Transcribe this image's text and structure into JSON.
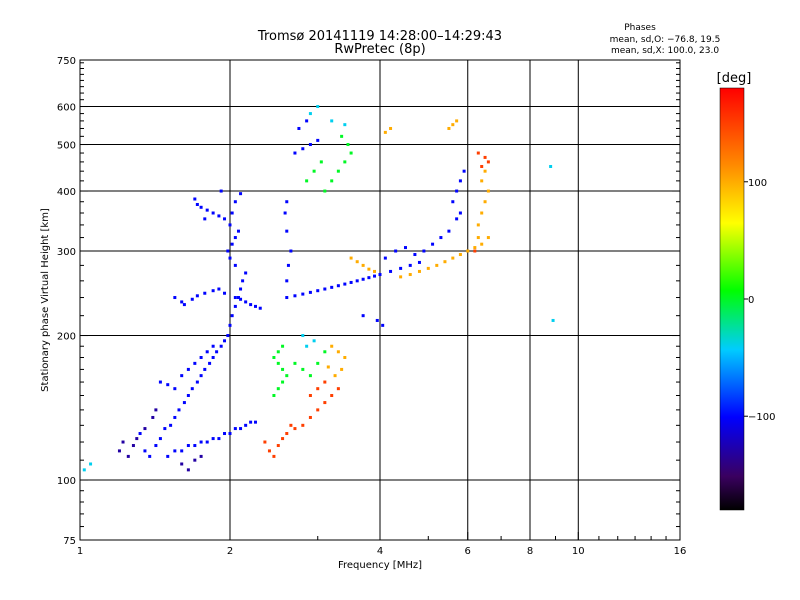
{
  "chart_data": {
    "type": "scatter",
    "title": "Tromsø 20141119 14:28:00–14:29:43",
    "subtitle": "RwPretec (8p)",
    "xlabel": "Frequency [MHz]",
    "ylabel": "Stationary phase Virtual Height [km]",
    "xscale": "log",
    "yscale": "log",
    "xlim": [
      1,
      16
    ],
    "ylim": [
      75,
      750
    ],
    "x_ticks": [
      1,
      2,
      4,
      6,
      8,
      10,
      16
    ],
    "x_tick_labels": [
      "1",
      "2",
      "4",
      "6",
      "8",
      "10",
      "16"
    ],
    "x_gridlines": [
      2,
      4,
      6,
      8,
      10
    ],
    "y_ticks": [
      75,
      100,
      200,
      300,
      400,
      500,
      600,
      750
    ],
    "y_tick_labels": [
      "75",
      "100",
      "200",
      "300",
      "400",
      "500",
      "600",
      "750"
    ],
    "y_gridlines": [
      100,
      200,
      300,
      400,
      500,
      600
    ],
    "grid": true,
    "info_heading": "Phases",
    "info_lines": [
      "mean, sd,O: −76.8, 19.5",
      "mean, sd,X: 100.0, 23.0"
    ],
    "colorbar": {
      "label": "[deg]",
      "range": [
        -180,
        180
      ],
      "ticks": [
        -100,
        0,
        100
      ],
      "tick_labels": [
        "−100",
        "0",
        "100"
      ]
    },
    "series": [
      {
        "color_value": -100,
        "points": [
          [
            1.32,
            125
          ],
          [
            1.35,
            115
          ],
          [
            1.38,
            112
          ],
          [
            1.42,
            118
          ],
          [
            1.45,
            122
          ],
          [
            1.48,
            128
          ],
          [
            1.52,
            130
          ],
          [
            1.55,
            135
          ],
          [
            1.58,
            140
          ],
          [
            1.62,
            145
          ],
          [
            1.65,
            150
          ],
          [
            1.68,
            155
          ],
          [
            1.72,
            160
          ],
          [
            1.75,
            165
          ],
          [
            1.78,
            170
          ],
          [
            1.82,
            175
          ],
          [
            1.85,
            180
          ],
          [
            1.88,
            185
          ],
          [
            1.92,
            190
          ],
          [
            1.95,
            195
          ],
          [
            1.5,
            112
          ],
          [
            1.55,
            115
          ],
          [
            1.6,
            115
          ],
          [
            1.65,
            118
          ],
          [
            1.7,
            118
          ],
          [
            1.75,
            120
          ],
          [
            1.8,
            120
          ],
          [
            1.85,
            122
          ],
          [
            1.9,
            122
          ],
          [
            1.95,
            125
          ],
          [
            2.0,
            125
          ],
          [
            2.05,
            128
          ],
          [
            2.1,
            128
          ],
          [
            2.15,
            130
          ],
          [
            2.2,
            132
          ],
          [
            2.25,
            132
          ],
          [
            1.98,
            200
          ],
          [
            2.0,
            210
          ],
          [
            2.02,
            220
          ],
          [
            2.05,
            230
          ],
          [
            2.08,
            240
          ],
          [
            2.1,
            250
          ],
          [
            2.12,
            260
          ],
          [
            2.15,
            270
          ],
          [
            2.05,
            280
          ],
          [
            2.0,
            290
          ],
          [
            1.98,
            300
          ],
          [
            2.02,
            310
          ],
          [
            2.05,
            320
          ],
          [
            2.08,
            330
          ],
          [
            2.0,
            340
          ],
          [
            1.95,
            350
          ],
          [
            2.02,
            360
          ],
          [
            2.05,
            380
          ],
          [
            2.1,
            395
          ],
          [
            1.92,
            400
          ],
          [
            1.7,
            385
          ],
          [
            1.75,
            370
          ],
          [
            1.8,
            365
          ],
          [
            1.85,
            360
          ],
          [
            1.9,
            355
          ],
          [
            1.72,
            375
          ],
          [
            1.78,
            350
          ],
          [
            1.55,
            240
          ],
          [
            1.6,
            235
          ],
          [
            1.62,
            232
          ],
          [
            1.68,
            238
          ],
          [
            1.72,
            242
          ],
          [
            1.78,
            245
          ],
          [
            1.85,
            248
          ],
          [
            1.9,
            250
          ],
          [
            1.95,
            245
          ],
          [
            2.05,
            240
          ],
          [
            2.1,
            238
          ],
          [
            2.15,
            235
          ],
          [
            2.2,
            232
          ],
          [
            2.25,
            230
          ],
          [
            2.3,
            228
          ],
          [
            1.45,
            160
          ],
          [
            1.5,
            158
          ],
          [
            1.55,
            155
          ],
          [
            1.6,
            165
          ],
          [
            1.65,
            170
          ],
          [
            1.7,
            175
          ],
          [
            1.75,
            180
          ],
          [
            1.8,
            185
          ],
          [
            1.85,
            190
          ],
          [
            2.6,
            240
          ],
          [
            2.7,
            242
          ],
          [
            2.8,
            244
          ],
          [
            2.9,
            246
          ],
          [
            3.0,
            248
          ],
          [
            3.1,
            250
          ],
          [
            3.2,
            252
          ],
          [
            3.3,
            254
          ],
          [
            3.4,
            256
          ],
          [
            3.5,
            258
          ],
          [
            3.6,
            260
          ],
          [
            3.7,
            262
          ],
          [
            3.8,
            264
          ],
          [
            3.9,
            266
          ],
          [
            4.0,
            268
          ],
          [
            4.2,
            272
          ],
          [
            4.4,
            276
          ],
          [
            4.6,
            280
          ],
          [
            4.8,
            284
          ],
          [
            2.6,
            260
          ],
          [
            2.62,
            280
          ],
          [
            2.65,
            300
          ],
          [
            2.6,
            330
          ],
          [
            2.58,
            360
          ],
          [
            2.6,
            380
          ],
          [
            2.7,
            480
          ],
          [
            2.8,
            490
          ],
          [
            2.9,
            500
          ],
          [
            3.0,
            510
          ],
          [
            2.75,
            540
          ],
          [
            2.85,
            560
          ],
          [
            4.1,
            290
          ],
          [
            4.3,
            300
          ],
          [
            4.5,
            305
          ],
          [
            4.7,
            295
          ],
          [
            4.9,
            300
          ],
          [
            5.1,
            310
          ],
          [
            5.3,
            320
          ],
          [
            5.5,
            330
          ],
          [
            5.6,
            380
          ],
          [
            5.7,
            400
          ],
          [
            5.8,
            420
          ],
          [
            5.9,
            440
          ],
          [
            5.8,
            360
          ],
          [
            5.7,
            350
          ],
          [
            4.05,
            210
          ],
          [
            3.95,
            215
          ],
          [
            3.7,
            220
          ]
        ]
      },
      {
        "color_value": 0,
        "points": [
          [
            2.45,
            150
          ],
          [
            2.5,
            155
          ],
          [
            2.55,
            160
          ],
          [
            2.6,
            165
          ],
          [
            2.55,
            170
          ],
          [
            2.5,
            175
          ],
          [
            2.45,
            180
          ],
          [
            2.5,
            185
          ],
          [
            2.55,
            190
          ],
          [
            2.7,
            175
          ],
          [
            2.8,
            170
          ],
          [
            2.9,
            165
          ],
          [
            3.0,
            175
          ],
          [
            3.1,
            185
          ],
          [
            3.1,
            400
          ],
          [
            3.2,
            420
          ],
          [
            3.3,
            440
          ],
          [
            3.4,
            460
          ],
          [
            3.5,
            480
          ],
          [
            3.45,
            500
          ],
          [
            3.35,
            520
          ],
          [
            2.95,
            440
          ],
          [
            3.05,
            460
          ],
          [
            2.85,
            420
          ]
        ]
      },
      {
        "color_value": 100,
        "points": [
          [
            3.5,
            290
          ],
          [
            3.6,
            285
          ],
          [
            3.7,
            280
          ],
          [
            3.8,
            275
          ],
          [
            3.9,
            272
          ],
          [
            4.4,
            265
          ],
          [
            4.6,
            268
          ],
          [
            4.8,
            272
          ],
          [
            5.0,
            276
          ],
          [
            5.2,
            280
          ],
          [
            5.4,
            285
          ],
          [
            5.6,
            290
          ],
          [
            5.8,
            295
          ],
          [
            6.0,
            300
          ],
          [
            6.2,
            305
          ],
          [
            6.4,
            310
          ],
          [
            6.6,
            320
          ],
          [
            6.3,
            340
          ],
          [
            6.4,
            360
          ],
          [
            6.5,
            380
          ],
          [
            6.6,
            400
          ],
          [
            6.4,
            420
          ],
          [
            6.5,
            440
          ],
          [
            6.3,
            320
          ],
          [
            3.2,
            190
          ],
          [
            3.3,
            185
          ],
          [
            3.4,
            180
          ],
          [
            3.35,
            170
          ],
          [
            3.25,
            165
          ],
          [
            3.15,
            172
          ],
          [
            5.6,
            550
          ],
          [
            5.7,
            560
          ],
          [
            5.5,
            540
          ],
          [
            4.1,
            530
          ],
          [
            4.2,
            540
          ]
        ]
      },
      {
        "color_value": 150,
        "points": [
          [
            2.35,
            120
          ],
          [
            2.4,
            115
          ],
          [
            2.45,
            112
          ],
          [
            2.5,
            118
          ],
          [
            2.55,
            122
          ],
          [
            2.6,
            125
          ],
          [
            2.65,
            130
          ],
          [
            2.7,
            128
          ],
          [
            2.8,
            130
          ],
          [
            2.9,
            135
          ],
          [
            3.0,
            140
          ],
          [
            3.1,
            145
          ],
          [
            3.2,
            150
          ],
          [
            3.3,
            155
          ],
          [
            3.1,
            160
          ],
          [
            3.0,
            155
          ],
          [
            2.9,
            150
          ],
          [
            6.4,
            450
          ],
          [
            6.5,
            470
          ],
          [
            6.6,
            460
          ],
          [
            6.3,
            480
          ],
          [
            6.2,
            300
          ]
        ]
      },
      {
        "color_value": -130,
        "points": [
          [
            1.2,
            115
          ],
          [
            1.25,
            112
          ],
          [
            1.28,
            118
          ],
          [
            1.3,
            122
          ],
          [
            1.22,
            120
          ],
          [
            1.4,
            135
          ],
          [
            1.42,
            140
          ],
          [
            1.35,
            128
          ],
          [
            1.6,
            108
          ],
          [
            1.65,
            105
          ],
          [
            1.7,
            110
          ],
          [
            1.75,
            112
          ]
        ]
      },
      {
        "color_value": -40,
        "points": [
          [
            1.02,
            105
          ],
          [
            1.05,
            108
          ],
          [
            2.9,
            580
          ],
          [
            3.0,
            600
          ],
          [
            3.2,
            560
          ],
          [
            3.4,
            550
          ],
          [
            2.8,
            200
          ],
          [
            2.85,
            190
          ],
          [
            2.95,
            195
          ],
          [
            8.9,
            215
          ],
          [
            8.8,
            450
          ]
        ]
      }
    ]
  }
}
